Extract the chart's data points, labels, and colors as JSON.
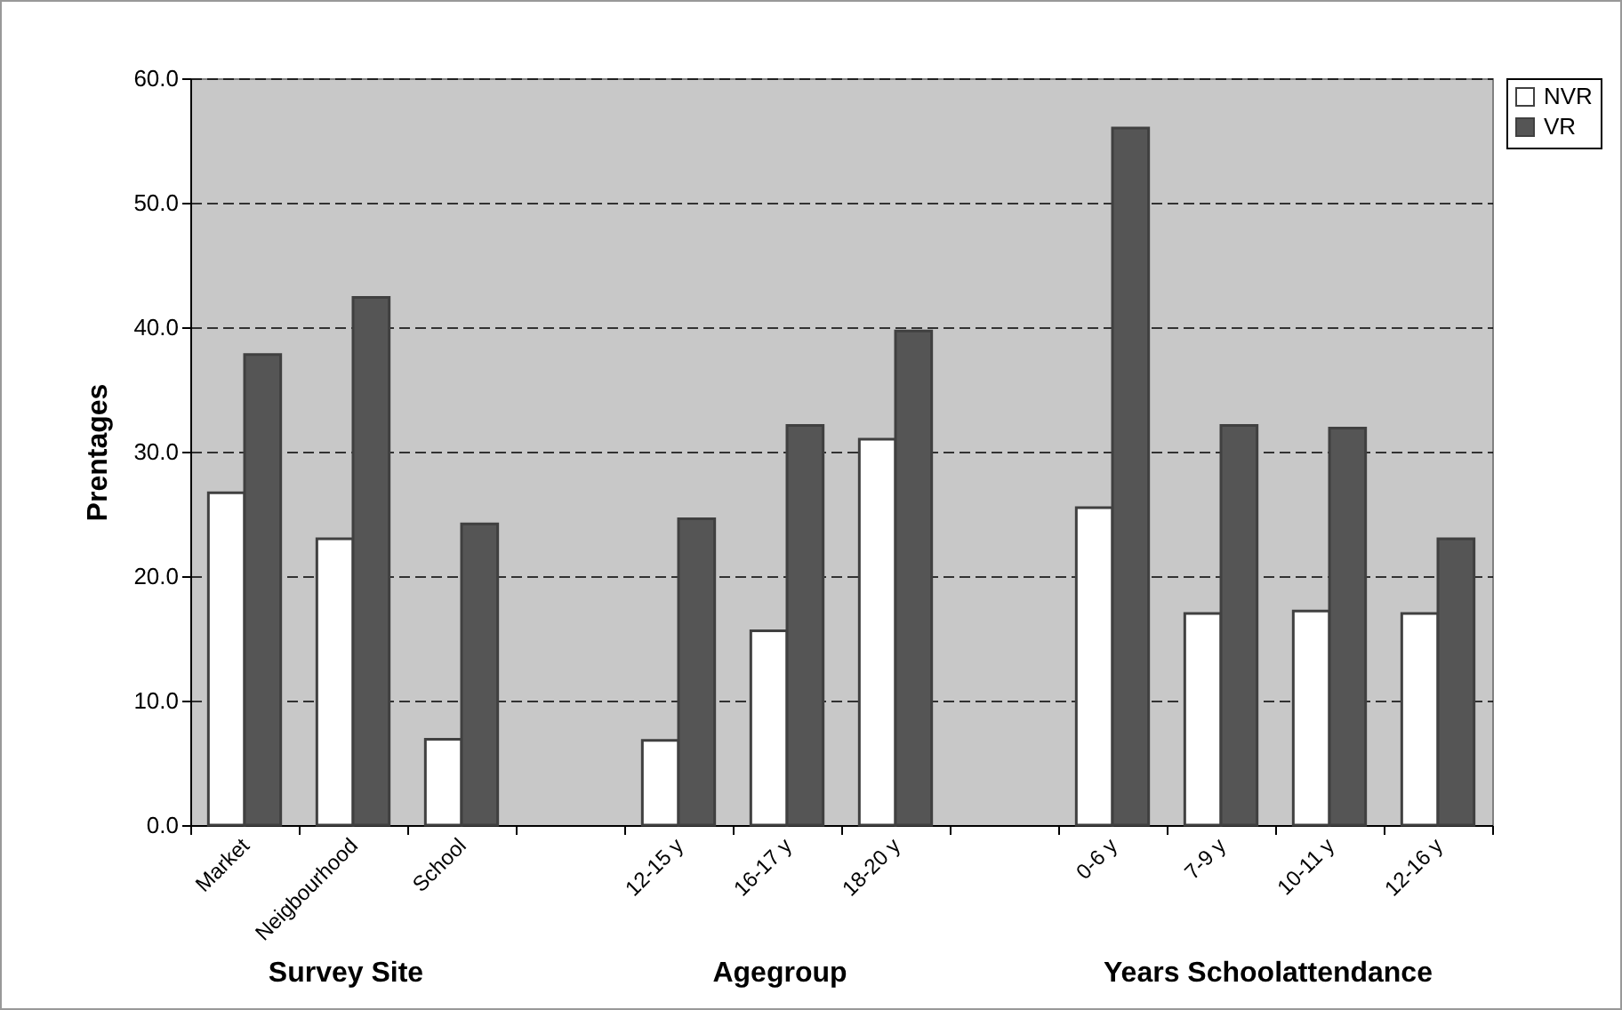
{
  "chart_data": {
    "type": "bar",
    "ylabel": "Prentages",
    "categories": [
      "Market",
      "Neigbourhood",
      "School",
      null,
      "12-15 y",
      "16-17 y",
      "18-20 y",
      null,
      "0-6 y",
      "7-9 y",
      "10-11 y",
      "12-16 y"
    ],
    "series": [
      {
        "name": "NVR",
        "color": "#ffffff",
        "values": [
          26.7,
          23.0,
          6.9,
          null,
          6.8,
          15.6,
          31.0,
          null,
          25.5,
          17.0,
          17.2,
          17.0
        ]
      },
      {
        "name": "VR",
        "color": "#555555",
        "values": [
          37.8,
          42.4,
          24.2,
          null,
          24.6,
          32.1,
          39.7,
          null,
          56.0,
          32.1,
          31.9,
          23.0
        ]
      }
    ],
    "annotations": [
      "Survey Site",
      "Agegroup",
      "Years Schoolattendance"
    ],
    "ylim": [
      0,
      60
    ],
    "yticks": [
      {
        "value": 0,
        "label": "0.0"
      },
      {
        "value": 10,
        "label": "10.0"
      },
      {
        "value": 20,
        "label": "20.0"
      },
      {
        "value": 30,
        "label": "30.0"
      },
      {
        "value": 40,
        "label": "40.0"
      },
      {
        "value": 50,
        "label": "50.0"
      },
      {
        "value": 60,
        "label": "60.0"
      }
    ],
    "grid": "y",
    "legend": "right"
  }
}
